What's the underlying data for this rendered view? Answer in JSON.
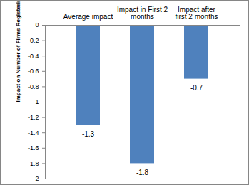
{
  "chart_data": {
    "type": "bar",
    "categories": [
      "Average impact",
      "Impact in First 2 months",
      "Impact after first 2 months"
    ],
    "values": [
      -1.3,
      -1.8,
      -0.7
    ],
    "color": "#4f81bd",
    "y_label": "Impact on Number of Firms Registering per Municipality per Month",
    "ylim": [
      -2,
      0
    ],
    "yticks": [
      0,
      -0.2,
      -0.4,
      -0.6,
      -0.8,
      -1,
      -1.2,
      -1.4,
      -1.6,
      -1.8,
      -2
    ],
    "data_labels": true,
    "grid": false
  }
}
